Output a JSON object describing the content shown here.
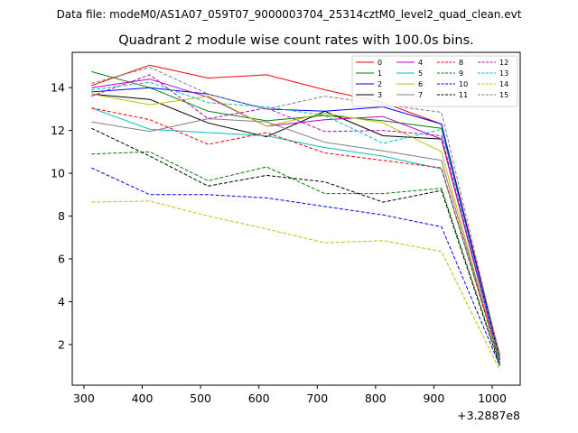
{
  "suptitle": "Data file: modeM0/AS1A07_059T07_9000003704_25314cztM0_level2_quad_clean.evt",
  "chart_data": {
    "type": "line",
    "title": "Quadrant 2 module wise count rates with 100.0s bins.",
    "xlabel": "",
    "ylabel": "",
    "x_offset_label": "+3.2887e8",
    "xlim": [
      280,
      1048
    ],
    "ylim": [
      0.1,
      15.65
    ],
    "xticks": [
      300,
      400,
      500,
      600,
      700,
      800,
      900,
      1000
    ],
    "yticks": [
      2,
      4,
      6,
      8,
      10,
      12,
      14
    ],
    "legend_position": "top-right",
    "legend_columns": 4,
    "x": [
      313,
      413,
      513,
      613,
      713,
      813,
      913,
      1013
    ],
    "series": [
      {
        "name": "0",
        "color": "#ff0000",
        "dash": "solid",
        "values": [
          14.1,
          15.05,
          14.45,
          14.6,
          13.9,
          13.3,
          12.3,
          1.5
        ]
      },
      {
        "name": "1",
        "color": "#008000",
        "dash": "solid",
        "values": [
          14.75,
          14.0,
          12.9,
          12.45,
          12.7,
          12.45,
          12.1,
          1.4
        ]
      },
      {
        "name": "2",
        "color": "#0000ff",
        "dash": "solid",
        "values": [
          13.8,
          14.0,
          13.7,
          13.0,
          12.9,
          13.1,
          12.3,
          1.3
        ]
      },
      {
        "name": "3",
        "color": "#000000",
        "dash": "solid",
        "values": [
          13.7,
          13.45,
          12.35,
          11.7,
          12.9,
          11.75,
          11.6,
          1.3
        ]
      },
      {
        "name": "4",
        "color": "#c000c0",
        "dash": "solid",
        "values": [
          14.0,
          14.4,
          13.55,
          12.2,
          12.5,
          12.65,
          11.6,
          1.2
        ]
      },
      {
        "name": "5",
        "color": "#00bfbf",
        "dash": "solid",
        "values": [
          13.05,
          12.05,
          11.9,
          11.75,
          11.2,
          10.8,
          10.2,
          1.2
        ]
      },
      {
        "name": "6",
        "color": "#bfbf00",
        "dash": "solid",
        "values": [
          13.7,
          13.2,
          13.6,
          12.2,
          12.8,
          12.35,
          11.0,
          1.1
        ]
      },
      {
        "name": "7",
        "color": "#808080",
        "dash": "solid",
        "values": [
          12.4,
          11.95,
          12.55,
          12.4,
          11.45,
          11.05,
          10.6,
          1.2
        ]
      },
      {
        "name": "8",
        "color": "#ff0000",
        "dash": "dashed",
        "values": [
          13.05,
          12.5,
          11.35,
          11.9,
          10.95,
          10.6,
          10.25,
          1.2
        ]
      },
      {
        "name": "9",
        "color": "#008000",
        "dash": "dashed",
        "values": [
          10.9,
          11.0,
          9.65,
          10.3,
          9.05,
          9.05,
          9.3,
          1.1
        ]
      },
      {
        "name": "10",
        "color": "#0000ff",
        "dash": "dashed",
        "values": [
          10.25,
          9.0,
          9.0,
          8.85,
          8.45,
          8.05,
          7.5,
          1.0
        ]
      },
      {
        "name": "11",
        "color": "#000000",
        "dash": "dashed",
        "values": [
          12.1,
          10.8,
          9.4,
          9.9,
          9.6,
          8.65,
          9.2,
          1.0
        ]
      },
      {
        "name": "12",
        "color": "#c000c0",
        "dash": "dashed",
        "values": [
          13.6,
          14.6,
          12.55,
          13.05,
          11.95,
          12.0,
          11.75,
          1.2
        ]
      },
      {
        "name": "13",
        "color": "#00bfbf",
        "dash": "dashed",
        "values": [
          13.9,
          14.25,
          13.3,
          13.1,
          12.7,
          11.4,
          12.05,
          1.2
        ]
      },
      {
        "name": "14",
        "color": "#bfbf00",
        "dash": "dashed",
        "values": [
          8.65,
          8.7,
          8.0,
          7.4,
          6.75,
          6.85,
          6.35,
          0.8
        ]
      },
      {
        "name": "15",
        "color": "#808080",
        "dash": "dashed",
        "values": [
          14.2,
          14.95,
          13.7,
          13.0,
          13.6,
          13.2,
          12.85,
          1.4
        ]
      }
    ]
  }
}
